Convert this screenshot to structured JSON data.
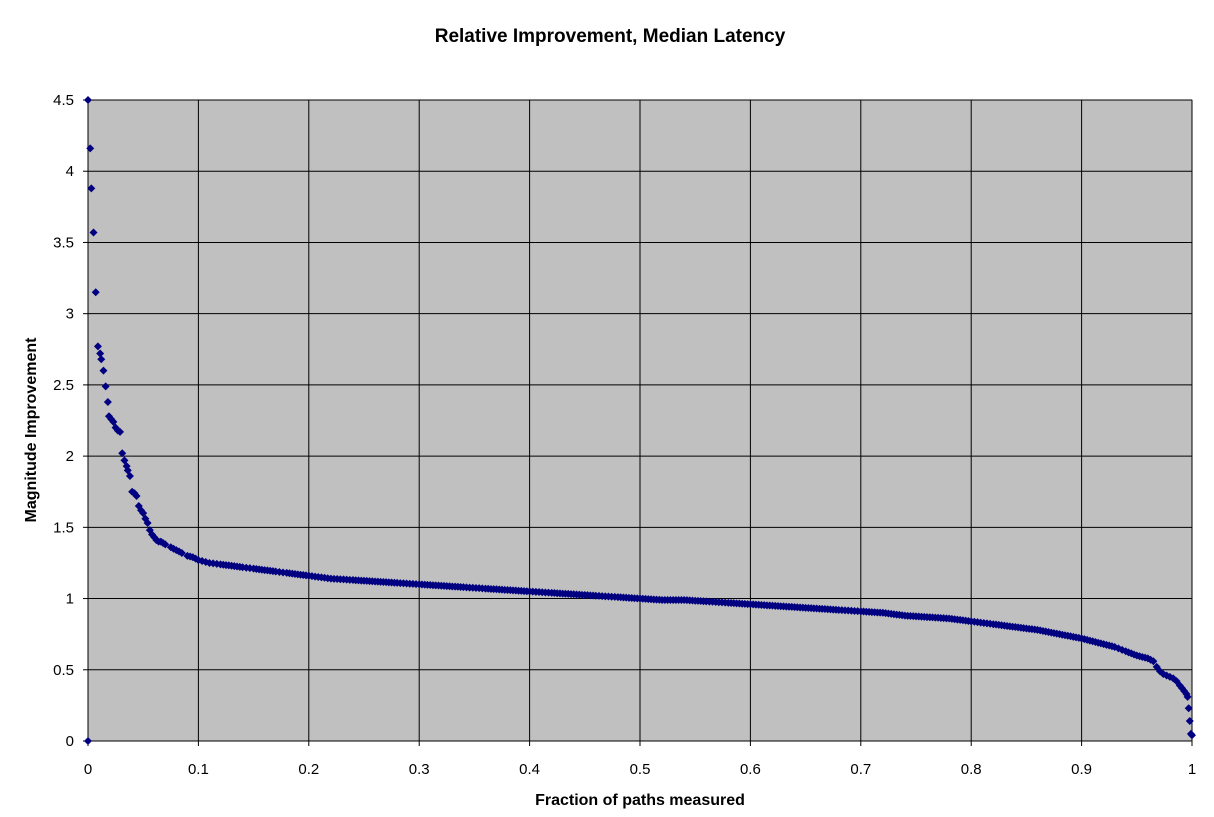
{
  "chart_data": {
    "type": "scatter",
    "title": "Relative Improvement, Median Latency",
    "xlabel": "Fraction of paths measured",
    "ylabel": "Magnitude Improvement",
    "xlim": [
      0,
      1
    ],
    "ylim": [
      0,
      4.5
    ],
    "x_ticks": [
      "0",
      "0.1",
      "0.2",
      "0.3",
      "0.4",
      "0.5",
      "0.6",
      "0.7",
      "0.8",
      "0.9",
      "1"
    ],
    "y_ticks": [
      "0",
      "0.5",
      "1",
      "1.5",
      "2",
      "2.5",
      "3",
      "3.5",
      "4",
      "4.5"
    ],
    "grid": true,
    "legend": "none",
    "colors": {
      "plot_background": "#c0c0c0",
      "marker": "#000080",
      "grid": "#000000"
    },
    "marker": "diamond",
    "series": [
      {
        "x": [
          0.0,
          0.0,
          0.002,
          0.003,
          0.005,
          0.007,
          0.009,
          0.011,
          0.012,
          0.014,
          0.016,
          0.018,
          0.019,
          0.021,
          0.023,
          0.025,
          0.027,
          0.029,
          0.031,
          0.033,
          0.035,
          0.036,
          0.038,
          0.04,
          0.042,
          0.044,
          0.046,
          0.048,
          0.05,
          0.052,
          0.054,
          0.056,
          0.058,
          0.06,
          0.062,
          0.064,
          0.066,
          0.068,
          0.07,
          0.075,
          0.08,
          0.085,
          0.09,
          0.095,
          0.1,
          0.11,
          0.12,
          0.13,
          0.14,
          0.15,
          0.16,
          0.17,
          0.18,
          0.19,
          0.2,
          0.22,
          0.24,
          0.26,
          0.28,
          0.3,
          0.32,
          0.34,
          0.36,
          0.38,
          0.4,
          0.42,
          0.44,
          0.46,
          0.48,
          0.5,
          0.52,
          0.54,
          0.56,
          0.58,
          0.6,
          0.62,
          0.64,
          0.66,
          0.68,
          0.7,
          0.72,
          0.74,
          0.76,
          0.78,
          0.8,
          0.82,
          0.84,
          0.86,
          0.88,
          0.9,
          0.91,
          0.92,
          0.93,
          0.94,
          0.95,
          0.955,
          0.96,
          0.965,
          0.968,
          0.971,
          0.974,
          0.977,
          0.98,
          0.983,
          0.986,
          0.989,
          0.991,
          0.993,
          0.995,
          0.996,
          0.997,
          0.998,
          0.999,
          1.0
        ],
        "y": [
          4.5,
          0.0,
          4.16,
          3.88,
          3.57,
          3.15,
          2.77,
          2.72,
          2.68,
          2.6,
          2.49,
          2.38,
          2.28,
          2.26,
          2.24,
          2.2,
          2.18,
          2.17,
          2.02,
          1.97,
          1.93,
          1.9,
          1.86,
          1.75,
          1.74,
          1.72,
          1.65,
          1.62,
          1.6,
          1.56,
          1.53,
          1.48,
          1.45,
          1.43,
          1.41,
          1.4,
          1.4,
          1.39,
          1.38,
          1.36,
          1.34,
          1.32,
          1.3,
          1.29,
          1.27,
          1.25,
          1.24,
          1.23,
          1.22,
          1.21,
          1.2,
          1.19,
          1.18,
          1.17,
          1.16,
          1.14,
          1.13,
          1.12,
          1.11,
          1.1,
          1.09,
          1.08,
          1.07,
          1.06,
          1.05,
          1.04,
          1.03,
          1.02,
          1.01,
          1.0,
          0.99,
          0.99,
          0.98,
          0.97,
          0.96,
          0.95,
          0.94,
          0.93,
          0.92,
          0.91,
          0.9,
          0.88,
          0.87,
          0.86,
          0.84,
          0.82,
          0.8,
          0.78,
          0.75,
          0.72,
          0.7,
          0.68,
          0.66,
          0.63,
          0.6,
          0.59,
          0.58,
          0.56,
          0.52,
          0.49,
          0.47,
          0.46,
          0.45,
          0.44,
          0.42,
          0.39,
          0.37,
          0.35,
          0.33,
          0.31,
          0.23,
          0.14,
          0.05,
          0.04
        ]
      }
    ]
  }
}
